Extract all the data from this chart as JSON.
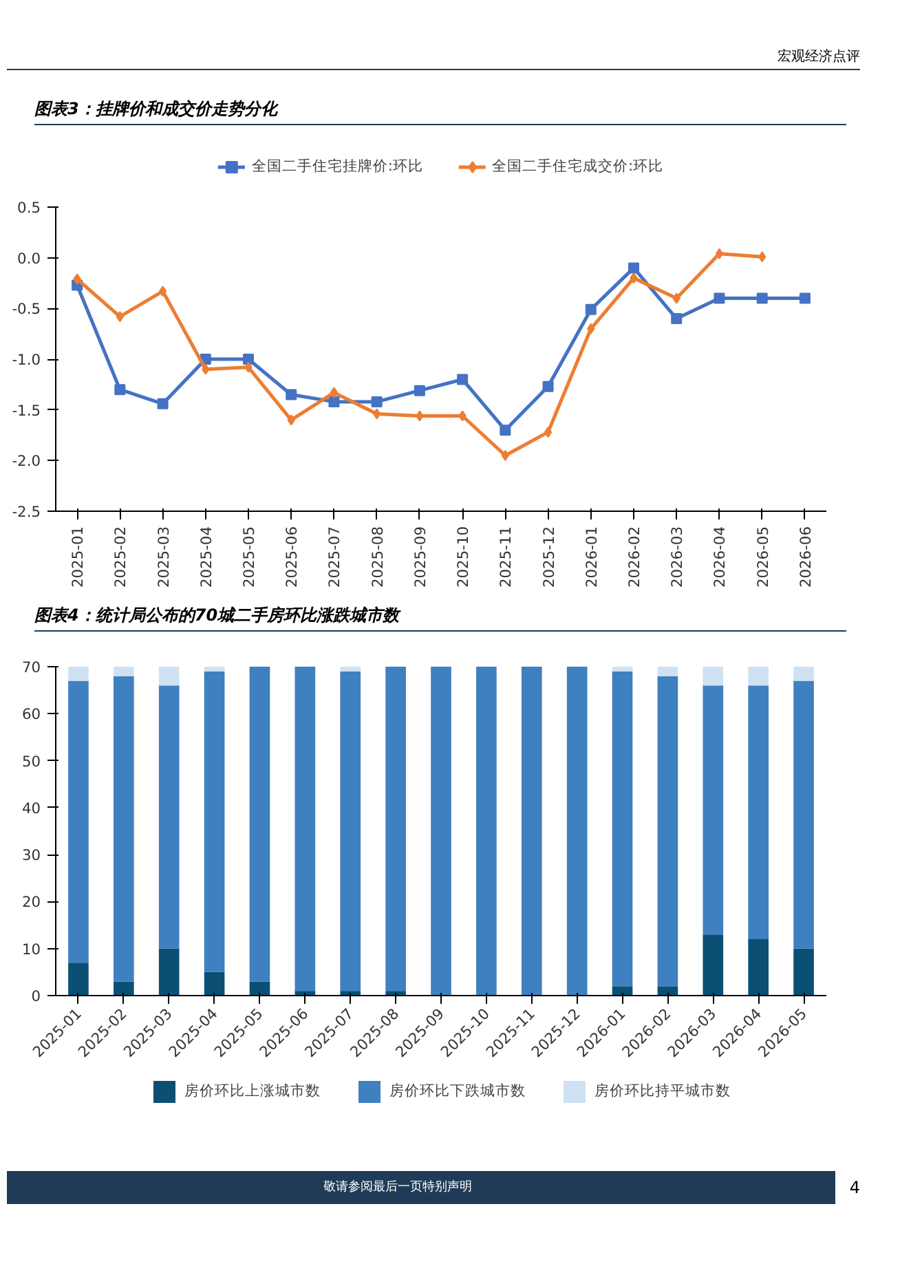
{
  "chart_data": [
    {
      "type": "line",
      "title": "图表3：挂牌价和成交价走势分化",
      "annotations": [
        "宏观经济点评"
      ],
      "categories": [
        "2025-01",
        "2025-02",
        "2025-03",
        "2025-04",
        "2025-05",
        "2025-06",
        "2025-07",
        "2025-08",
        "2025-09",
        "2025-10",
        "2025-11",
        "2025-12",
        "2026-01",
        "2026-02",
        "2026-03",
        "2026-04",
        "2026-05",
        "2026-06"
      ],
      "series": [
        {
          "name": "全国二手住宅挂牌价:环比",
          "color": "#4472c4",
          "marker": "square",
          "values": [
            -0.27,
            -1.3,
            -1.44,
            -1.0,
            -1.0,
            -1.35,
            -1.42,
            -1.42,
            -1.31,
            -1.2,
            -1.7,
            -1.27,
            -0.51,
            -0.1,
            -0.6,
            -0.4,
            -0.4,
            -0.4
          ]
        },
        {
          "name": "全国二手住宅成交价:环比",
          "color": "#ed7d31",
          "marker": "diamond",
          "values": [
            -0.21,
            -0.58,
            -0.33,
            -1.1,
            -1.08,
            -1.6,
            -1.33,
            -1.54,
            -1.56,
            -1.56,
            -1.95,
            -1.72,
            -0.7,
            -0.2,
            -0.4,
            0.04,
            0.01,
            null
          ]
        }
      ],
      "ylim": [
        -2.5,
        0.5
      ],
      "yticks": [
        {
          "value": -2.5,
          "label": "-2.5"
        },
        {
          "value": -2.0,
          "label": "-2.0"
        },
        {
          "value": -1.5,
          "label": "-1.5"
        },
        {
          "value": -1.0,
          "label": "-1.0"
        },
        {
          "value": -0.5,
          "label": "-0.5"
        },
        {
          "value": 0,
          "label": "0.0"
        },
        {
          "value": 0.5,
          "label": "0.5"
        }
      ],
      "grid": false,
      "legend": "top",
      "line_style": "solid"
    },
    {
      "type": "bar",
      "title": "图表4：统计局公布的70城二手房环比涨跌城市数",
      "stacked": true,
      "annotations": [
        "敬请参阅最后一页特别声明",
        "4"
      ],
      "categories": [
        "2025-01",
        "2025-02",
        "2025-03",
        "2025-04",
        "2025-05",
        "2025-06",
        "2025-07",
        "2025-08",
        "2025-09",
        "2025-10",
        "2025-11",
        "2025-12",
        "2026-01",
        "2026-02",
        "2026-03",
        "2026-04",
        "2026-05"
      ],
      "series": [
        {
          "name": "房价环比上涨城市数",
          "color": "#0b4f75",
          "values": [
            7,
            3,
            10,
            5,
            3,
            1,
            1,
            1,
            0,
            0,
            0,
            0,
            2,
            2,
            13,
            12,
            10
          ]
        },
        {
          "name": "房价环比下跌城市数",
          "color": "#3f80c0",
          "values": [
            60,
            65,
            56,
            64,
            67,
            69,
            68,
            69,
            70,
            70,
            70,
            70,
            67,
            66,
            53,
            54,
            57
          ]
        },
        {
          "name": "房价环比持平城市数",
          "color": "#cfe2f3",
          "values": [
            3,
            2,
            4,
            1,
            0,
            0,
            1,
            0,
            0,
            0,
            0,
            0,
            1,
            2,
            4,
            4,
            3
          ]
        }
      ],
      "ylim": [
        0,
        70
      ],
      "yticks": [
        0,
        10,
        20,
        30,
        40,
        50,
        60,
        70
      ],
      "grid": false,
      "legend": "bottom"
    }
  ]
}
